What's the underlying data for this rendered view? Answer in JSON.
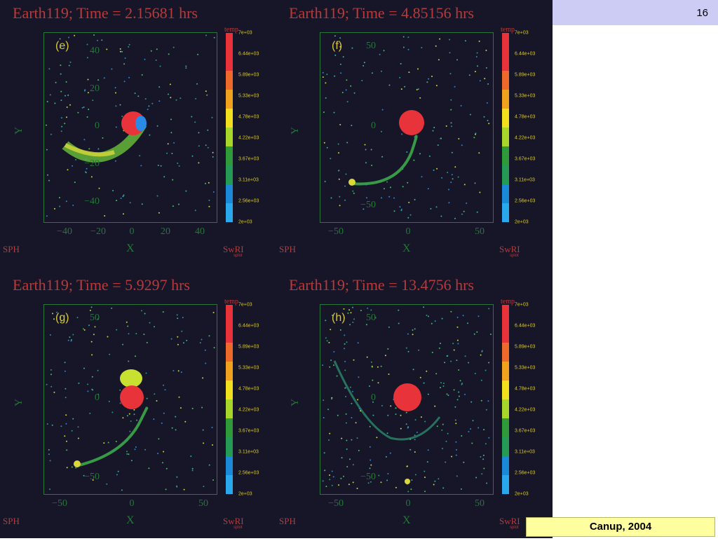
{
  "slide": {
    "number": "16"
  },
  "credit": "Canup, 2004",
  "colorbar": {
    "title": "temp",
    "labels": [
      "7e+03",
      "6.44e+03",
      "5.89e+03",
      "5.33e+03",
      "4.78e+03",
      "4.22e+03",
      "3.67e+03",
      "3.11e+03",
      "2.56e+03",
      "2e+03"
    ],
    "colors": [
      "#e8333a",
      "#e8333a",
      "#ee6a2a",
      "#f0a21e",
      "#f0e01e",
      "#a8d62a",
      "#2e9a3a",
      "#259a55",
      "#1a8ad8",
      "#2aa8ee"
    ]
  },
  "panels": [
    {
      "title": "Earth119; Time = 2.15681 hrs",
      "label": "(e)",
      "xticks": [
        "−40",
        "−20",
        "0",
        "20",
        "40"
      ],
      "yticks": [
        "40",
        "20",
        "0",
        "−20",
        "−40"
      ],
      "xlabel": "X",
      "ylabel": "Y",
      "sph": "SPH",
      "swri": "SwRI",
      "splot": "splot"
    },
    {
      "title": "Earth119; Time = 4.85156 hrs",
      "label": "(f)",
      "xticks": [
        "−50",
        "0",
        "50"
      ],
      "yticks": [
        "50",
        "0",
        "−50"
      ],
      "xlabel": "X",
      "ylabel": "Y",
      "sph": "SPH",
      "swri": "SwRI",
      "splot": "splot"
    },
    {
      "title": "Earth119; Time = 5.9297 hrs",
      "label": "(g)",
      "xticks": [
        "−50",
        "0",
        "50"
      ],
      "yticks": [
        "50",
        "0",
        "−50"
      ],
      "xlabel": "X",
      "ylabel": "Y",
      "sph": "SPH",
      "swri": "SwRI",
      "splot": "splot"
    },
    {
      "title": "Earth119; Time = 13.4756 hrs",
      "label": "(h)",
      "xticks": [
        "−50",
        "0",
        "50"
      ],
      "yticks": [
        "50",
        "0",
        "−50"
      ],
      "xlabel": "X",
      "ylabel": "Y",
      "sph": "SPH",
      "swri": "SwRI",
      "splot": "splot"
    }
  ]
}
